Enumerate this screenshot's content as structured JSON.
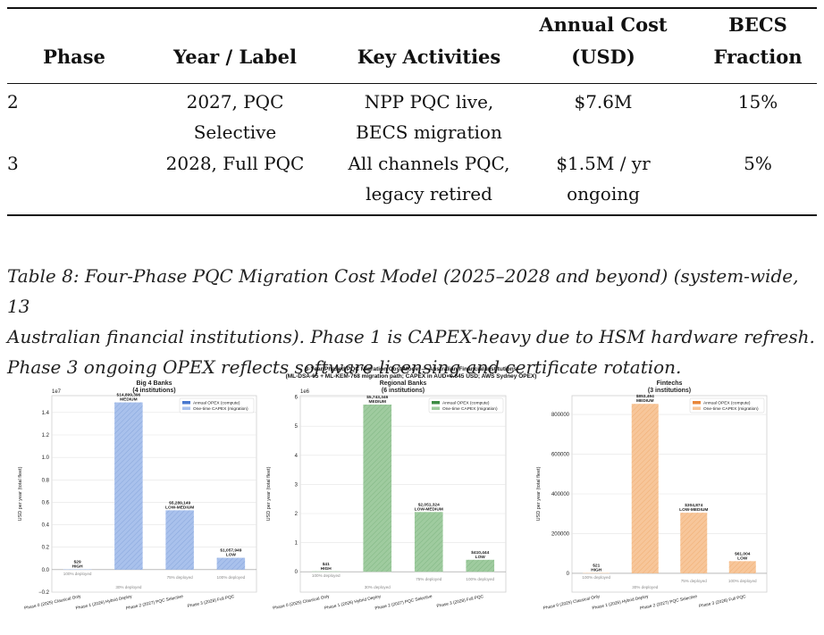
{
  "table": {
    "headers": {
      "phase": "Phase",
      "year_label": "Year / Label",
      "activities": "Key Activities",
      "cost_line1": "Annual Cost",
      "cost_line2": "(USD)",
      "becs_line1": "BECS",
      "becs_line2": "Fraction"
    },
    "rows": [
      {
        "phase": "2",
        "label_l1": "2027, PQC",
        "label_l2": "Selective",
        "act_l1": "NPP PQC live,",
        "act_l2": "BECS migration",
        "cost_l1": "$7.6M",
        "cost_l2": "",
        "becs": "15%"
      },
      {
        "phase": "3",
        "label_l1": "2028, Full PQC",
        "label_l2": "",
        "act_l1": "All channels PQC,",
        "act_l2": "legacy retired",
        "cost_l1": "$1.5M / yr",
        "cost_l2": "ongoing",
        "becs": "5%"
      }
    ]
  },
  "caption": {
    "line1": "Table 8: Four-Phase PQC Migration Cost Model (2025–2028 and beyond) (system-wide, 13",
    "line2": "Australian financial institutions). Phase 1 is CAPEX-heavy due to HSM hardware refresh.",
    "line3": "Phase 3 ongoing OPEX reflects software licensing and certificate rotation."
  },
  "figure": {
    "title_line1": "3-Year Phased PQC Migration Cost Model — Australian Financial Institutions",
    "title_line2": "(ML-DSA-65 + ML-KEM-768 migration path; CAPEX in AUD×0.645 USD; AWS Sydney OPEX)"
  },
  "chart_data": [
    {
      "type": "bar",
      "title": "Big 4 Banks",
      "subtitle": "(4 institutions)",
      "ylabel": "USD per year (total fleet)",
      "offset_label": "1e7",
      "categories": [
        "Phase 0 (2025) Classical Only",
        "Phase 1 (2026) Hybrid Deploy",
        "Phase 2 (2027) PQC Selective",
        "Phase 3 (2028) Full PQC"
      ],
      "values": [
        29,
        14899396,
        5289149,
        1057949
      ],
      "value_labels": [
        "$29",
        "$14,899,396",
        "$5,289,149",
        "$1,057,949"
      ],
      "risk_labels": [
        "HIGH",
        "MEDIUM",
        "LOW-MEDIUM",
        "LOW"
      ],
      "deploy_labels": [
        "100% deployed",
        "30% deployed",
        "75% deployed",
        "100% deployed"
      ],
      "ylim": [
        -0.2,
        1.55
      ],
      "yticks": [
        -0.2,
        0.0,
        0.2,
        0.4,
        0.6,
        0.8,
        1.0,
        1.2,
        1.4
      ],
      "ytick_labels": [
        "−0.2",
        "0.0",
        "0.2",
        "0.4",
        "0.6",
        "0.8",
        "1.0",
        "1.2",
        "1.4"
      ],
      "ytick_scale": 10000000,
      "legend": [
        "Annual OPEX (compute)",
        "One-time CAPEX (migration)"
      ],
      "legend_position": "top-right",
      "color": "#4878cf",
      "fill": "#a9c1ec",
      "grid": true
    },
    {
      "type": "bar",
      "title": "Regional Banks",
      "subtitle": "(6 institutions)",
      "ylabel": "USD per year (total fleet)",
      "offset_label": "1e6",
      "categories": [
        "Phase 0 (2025) Classical Only",
        "Phase 1 (2026) Hybrid Deploy",
        "Phase 2 (2027) PQC Selective",
        "Phase 3 (2028) Full PQC"
      ],
      "values": [
        41,
        5743346,
        2051324,
        410444
      ],
      "value_labels": [
        "$41",
        "$5,743,346",
        "$2,051,324",
        "$410,444"
      ],
      "risk_labels": [
        "HIGH",
        "MEDIUM",
        "LOW-MEDIUM",
        "LOW"
      ],
      "deploy_labels": [
        "100% deployed",
        "30% deployed",
        "75% deployed",
        "100% deployed"
      ],
      "ylim": [
        -0.7,
        6.05
      ],
      "yticks": [
        0,
        1,
        2,
        3,
        4,
        5,
        6
      ],
      "ytick_labels": [
        "0",
        "1",
        "2",
        "3",
        "4",
        "5",
        "6"
      ],
      "ytick_scale": 1000000,
      "legend": [
        "Annual OPEX (compute)",
        "One-time CAPEX (migration)"
      ],
      "legend_position": "top-right",
      "color": "#3c8c44",
      "fill": "#9fcb9f",
      "grid": true
    },
    {
      "type": "bar",
      "title": "Fintechs",
      "subtitle": "(3 institutions)",
      "ylabel": "USD per year (total fleet)",
      "offset_label": "",
      "categories": [
        "Phase 0 (2025) Classical Only",
        "Phase 1 (2026) Hybrid Deploy",
        "Phase 2 (2027) PQC Selective",
        "Phase 3 (2028) Full PQC"
      ],
      "values": [
        21,
        853494,
        304874,
        61004
      ],
      "value_labels": [
        "$21",
        "$853,494",
        "$304,874",
        "$61,004"
      ],
      "risk_labels": [
        "HIGH",
        "MEDIUM",
        "LOW-MEDIUM",
        "LOW"
      ],
      "deploy_labels": [
        "100% deployed",
        "30% deployed",
        "75% deployed",
        "100% deployed"
      ],
      "ylim": [
        -95000,
        895000
      ],
      "yticks": [
        0,
        200000,
        400000,
        600000,
        800000
      ],
      "ytick_labels": [
        "0",
        "200000",
        "400000",
        "600000",
        "800000"
      ],
      "ytick_scale": 1,
      "legend": [
        "Annual OPEX (compute)",
        "One-time CAPEX (migration)"
      ],
      "legend_position": "top-right",
      "color": "#e8863a",
      "fill": "#f7c69a",
      "grid": true
    }
  ]
}
